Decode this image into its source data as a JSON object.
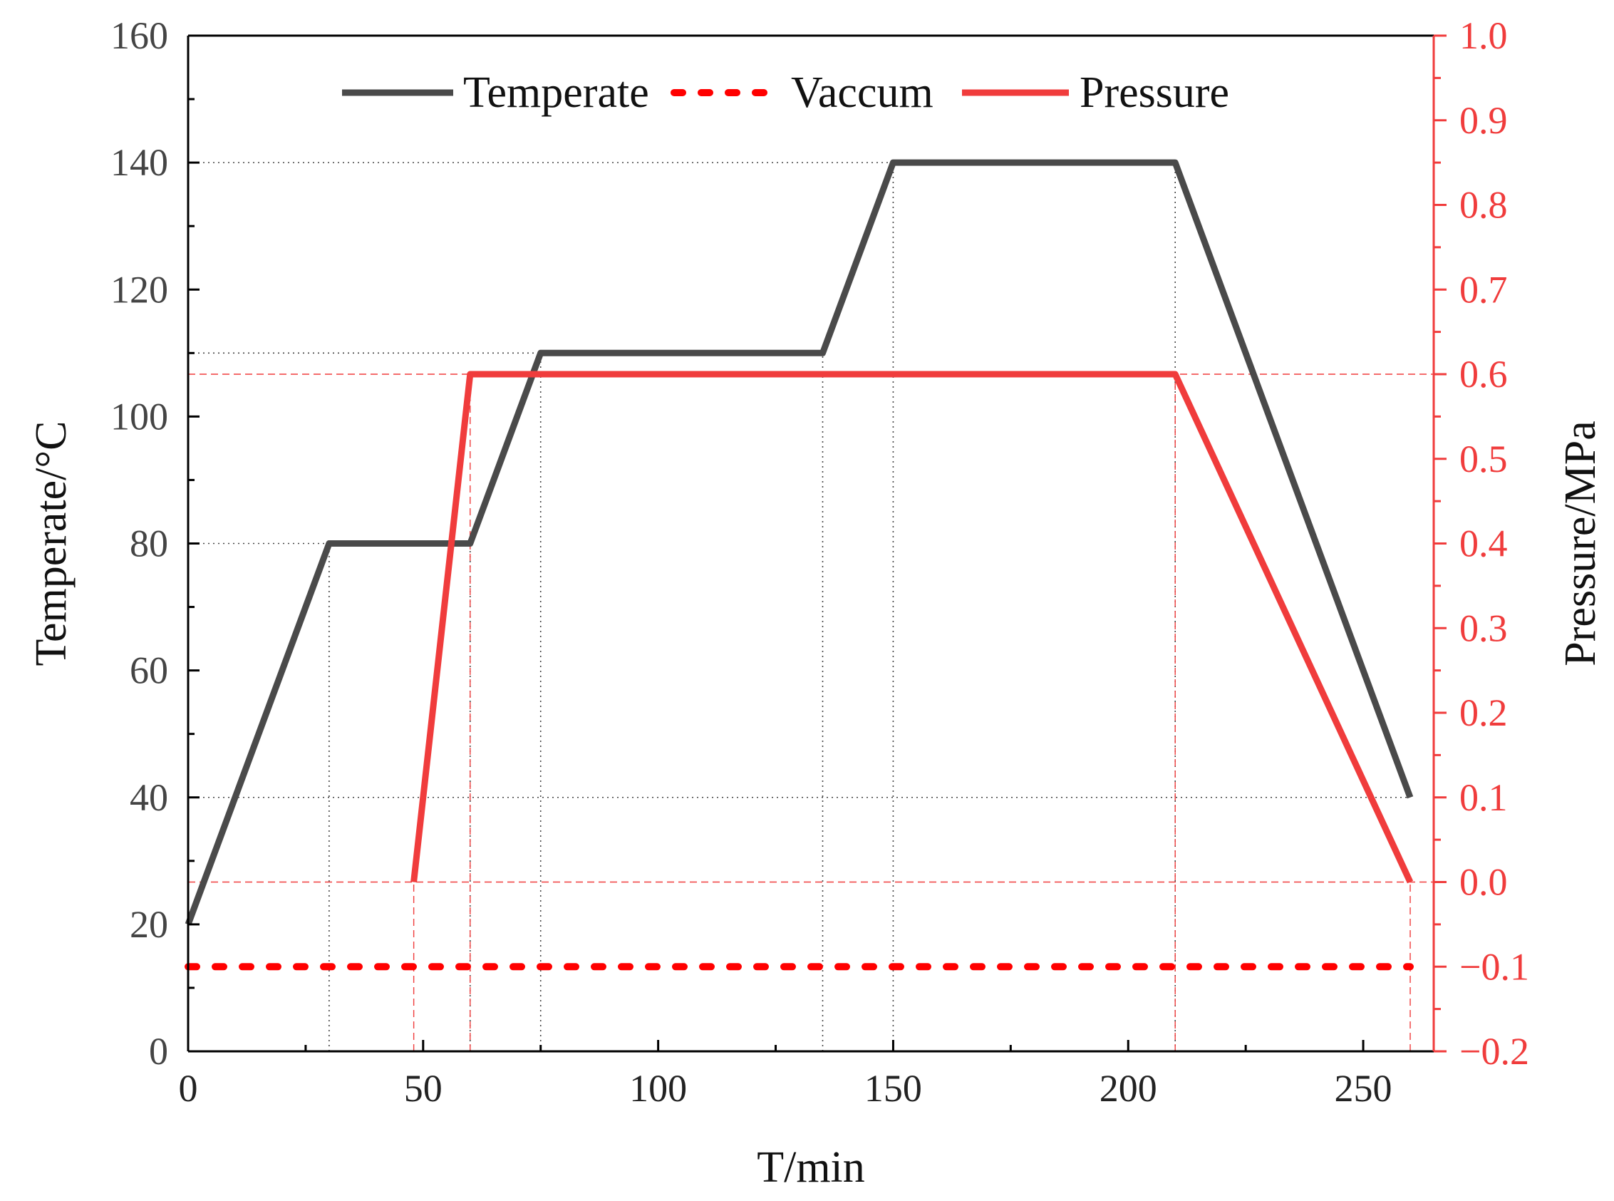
{
  "colors": {
    "temperature": "#4a4a4a",
    "vacuum": "#ff0000",
    "pressure": "#f03c3c",
    "right_axis": "#f03c3c",
    "axis": "#000000",
    "guide_black": "#444444",
    "guide_red": "#f03c3c"
  },
  "chart_data": {
    "type": "line",
    "xlabel": "T/min",
    "ylabel_left": "Temperate/°C",
    "ylabel_right": "Pressure/MPa",
    "xlim": [
      0,
      265
    ],
    "ylim_left": [
      0,
      160
    ],
    "ylim_right": [
      -0.2,
      1.0
    ],
    "x_ticks": [
      0,
      50,
      100,
      150,
      200,
      250
    ],
    "x_tick_labels": [
      "0",
      "50",
      "100",
      "150",
      "200",
      "250"
    ],
    "y_left_ticks": [
      0,
      20,
      40,
      60,
      80,
      100,
      120,
      140,
      160
    ],
    "y_left_tick_labels": [
      "0",
      "20",
      "40",
      "60",
      "80",
      "100",
      "120",
      "140",
      "160"
    ],
    "y_right_ticks": [
      -0.2,
      -0.1,
      0.0,
      0.1,
      0.2,
      0.3,
      0.4,
      0.5,
      0.6,
      0.7,
      0.8,
      0.9,
      1.0
    ],
    "y_right_tick_labels": [
      "−0.2",
      "−0.1",
      "0.0",
      "0.1",
      "0.2",
      "0.3",
      "0.4",
      "0.5",
      "0.6",
      "0.7",
      "0.8",
      "0.9",
      "1.0"
    ],
    "legend_position": "top",
    "series": [
      {
        "name": "Temperate",
        "axis": "left",
        "style": "solid",
        "x": [
          0,
          30,
          60,
          75,
          135,
          150,
          210,
          260
        ],
        "y": [
          20,
          80,
          80,
          110,
          110,
          140,
          140,
          40
        ]
      },
      {
        "name": "Vaccum",
        "axis": "right",
        "style": "dotted",
        "x": [
          0,
          260
        ],
        "y": [
          -0.1,
          -0.1
        ]
      },
      {
        "name": "Pressure",
        "axis": "right",
        "style": "solid",
        "x": [
          48,
          60,
          210,
          260
        ],
        "y": [
          0.0,
          0.6,
          0.6,
          0.0
        ]
      }
    ],
    "guides_left": [
      {
        "axis": "left",
        "y": 80,
        "x_to": 30
      },
      {
        "axis": "left",
        "y": 110,
        "x_to": 75
      },
      {
        "axis": "left",
        "y": 140,
        "x_to": 210
      },
      {
        "axis": "left",
        "y": 40,
        "x_to": 260
      },
      {
        "axis": "vertical",
        "x": 30,
        "y_to": 80
      },
      {
        "axis": "vertical",
        "x": 75,
        "y_to": 110
      },
      {
        "axis": "vertical",
        "x": 135,
        "y_to": 110
      },
      {
        "axis": "vertical",
        "x": 150,
        "y_to": 140
      },
      {
        "axis": "vertical",
        "x": 210,
        "y_to": 140
      },
      {
        "axis": "vertical",
        "x": 60,
        "y_to": 80
      }
    ],
    "guides_right": [
      {
        "axis": "right",
        "y": 0.6,
        "x_from": 0,
        "x_to": 265
      },
      {
        "axis": "right",
        "y": 0.0,
        "x_from": 0,
        "x_to": 265
      },
      {
        "axis": "vertical",
        "x": 48,
        "y_to": 0.0
      },
      {
        "axis": "vertical",
        "x": 60,
        "y_to": 0.6
      },
      {
        "axis": "vertical",
        "x": 210,
        "y_to": 0.6
      },
      {
        "axis": "vertical",
        "x": 260,
        "y_to": 0.0
      }
    ]
  }
}
